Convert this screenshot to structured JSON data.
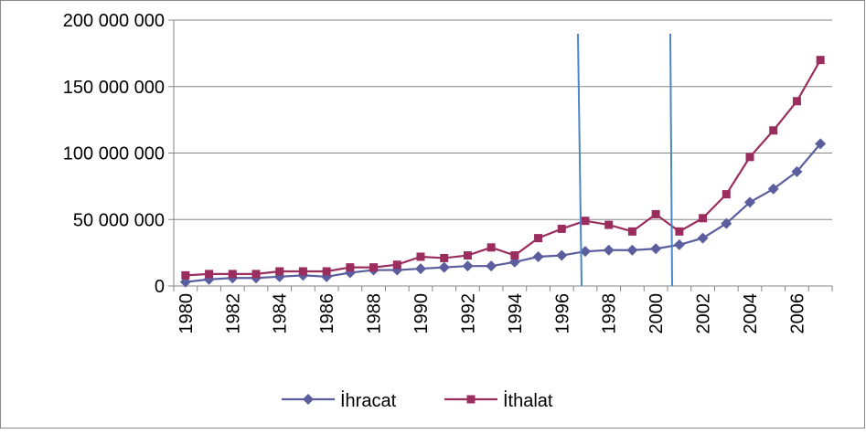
{
  "chart_data": {
    "type": "line",
    "categories": [
      "1980",
      null,
      "1982",
      null,
      "1984",
      null,
      "1986",
      null,
      "1988",
      null,
      "1990",
      null,
      "1992",
      null,
      "1994",
      null,
      "1996",
      null,
      "1998",
      null,
      "2000",
      null,
      "2002",
      null,
      "2004",
      null,
      "2006",
      null
    ],
    "series": [
      {
        "name": "İhracat",
        "color": "#5b5e9e",
        "marker": "diamond",
        "values": [
          3000000,
          5000000,
          6000000,
          6000000,
          7000000,
          8000000,
          7000000,
          10000000,
          12000000,
          12000000,
          13000000,
          14000000,
          15000000,
          15000000,
          18000000,
          22000000,
          23000000,
          26000000,
          27000000,
          27000000,
          28000000,
          31000000,
          36000000,
          47000000,
          63000000,
          73000000,
          86000000,
          107000000
        ]
      },
      {
        "name": "İthalat",
        "color": "#9b2d5e",
        "marker": "square",
        "values": [
          8000000,
          9000000,
          9000000,
          9000000,
          11000000,
          11000000,
          11000000,
          14000000,
          14000000,
          16000000,
          22000000,
          21000000,
          23000000,
          29000000,
          23000000,
          36000000,
          43000000,
          49000000,
          46000000,
          41000000,
          54000000,
          41000000,
          51000000,
          69000000,
          97000000,
          117000000,
          139000000,
          170000000
        ]
      }
    ],
    "ylim": [
      0,
      200000000
    ],
    "yticks": [
      0,
      {
        "value": 50000000,
        "label": "50 000 000"
      },
      {
        "value": 100000000,
        "label": "100 000 000"
      },
      {
        "value": 150000000,
        "label": "150 000 000"
      },
      {
        "value": 200000000,
        "label": "200 000 000"
      }
    ],
    "grid": true,
    "legend": "bottom"
  }
}
